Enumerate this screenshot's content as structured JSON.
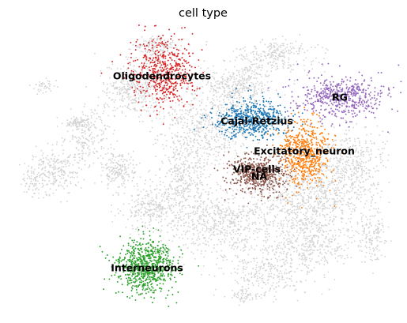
{
  "chart_data": {
    "type": "scatter",
    "title": "cell type",
    "xlabel": "",
    "ylabel": "",
    "axes_visible": false,
    "grid": false,
    "legend": "on data",
    "background_color": "#d3d3d3",
    "series": [
      {
        "name": "Oligodendrocytes",
        "color": "#d62728",
        "x": 205,
        "y": 97
      },
      {
        "name": "RG",
        "color": "#9467bd",
        "x": 430,
        "y": 124
      },
      {
        "name": "Cajal-Retzius",
        "color": "#1f77b4",
        "x": 325,
        "y": 154
      },
      {
        "name": "Excitatory_neuron",
        "color": "#ff7f0e",
        "x": 385,
        "y": 192
      },
      {
        "name": "VIP-cells",
        "color": "#8c564b",
        "x": 325,
        "y": 215
      },
      {
        "name": "NA",
        "color": "#8c564b",
        "x": 328,
        "y": 224
      },
      {
        "name": "Interneurons",
        "color": "#2ca02c",
        "x": 186,
        "y": 340
      }
    ]
  }
}
